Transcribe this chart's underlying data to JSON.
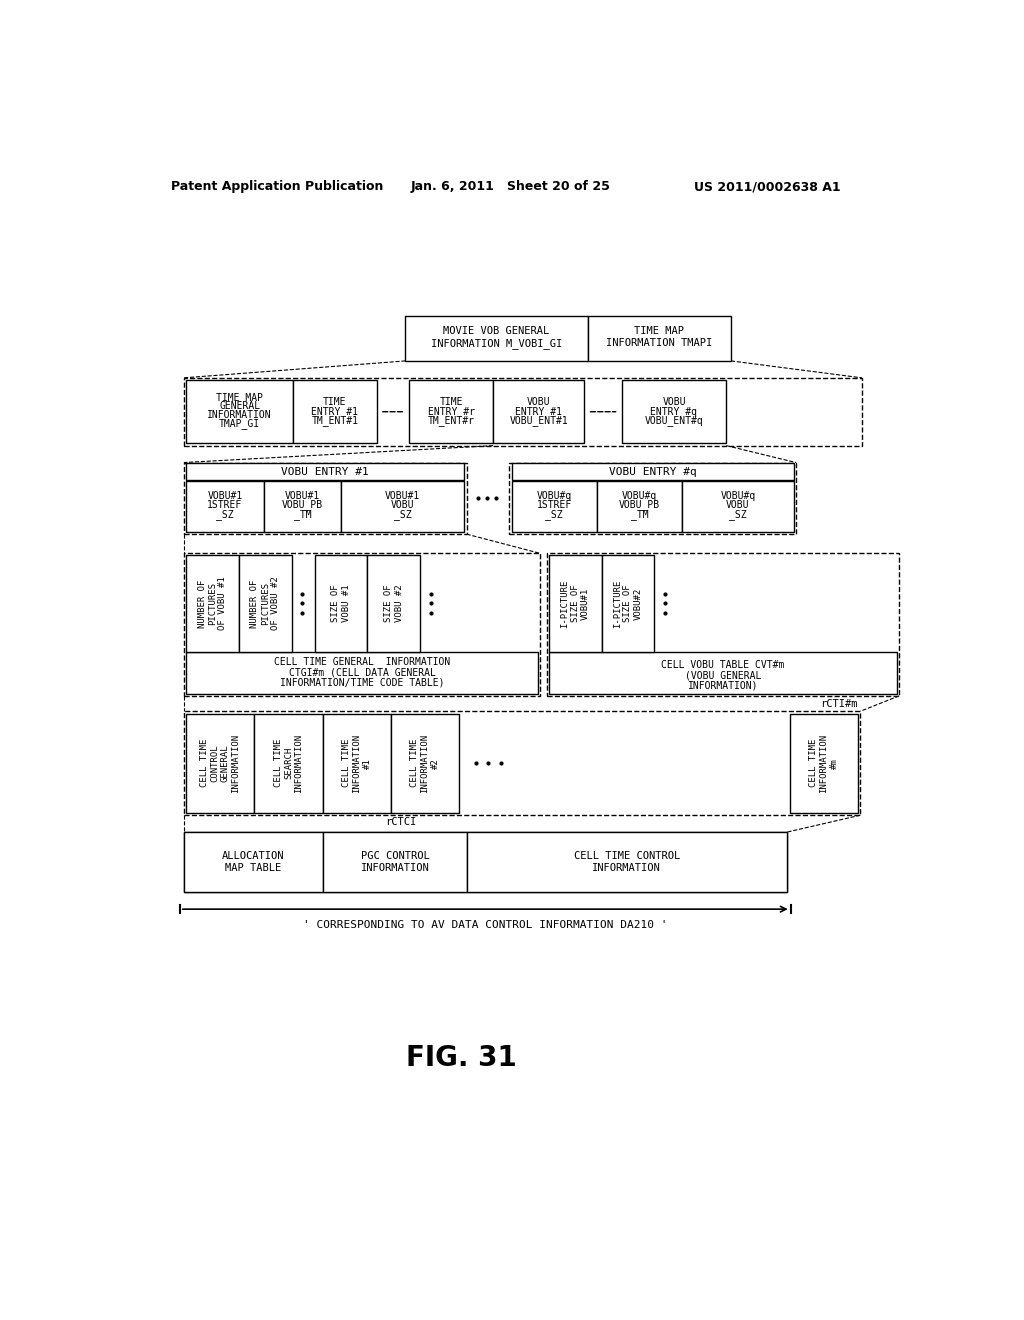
{
  "title": "FIG. 31",
  "header_left": "Patent Application Publication",
  "header_mid": "Jan. 6, 2011   Sheet 20 of 25",
  "header_right": "US 2011/0002638 A1",
  "bg_color": "#ffffff",
  "text_color": "#000000"
}
